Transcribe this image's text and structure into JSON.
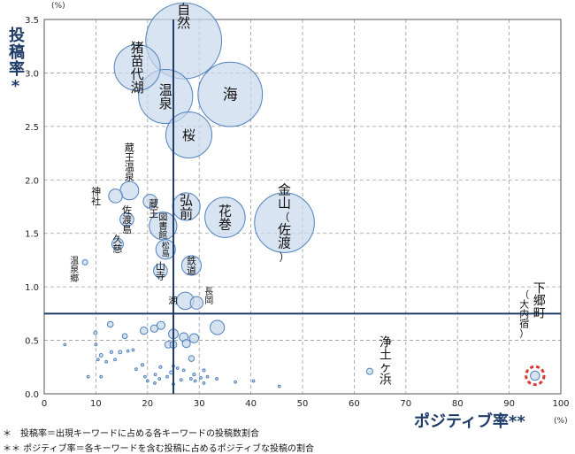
{
  "chart_data": {
    "type": "scatter",
    "title": "",
    "xlabel": "ポジティブ率**",
    "ylabel": "投稿率*",
    "x_unit": "(%)",
    "y_unit": "(%)",
    "xlim": [
      0,
      100
    ],
    "ylim": [
      0,
      3.5
    ],
    "xticks": [
      0,
      10,
      20,
      30,
      40,
      50,
      60,
      70,
      80,
      90,
      100
    ],
    "yticks": [
      0.0,
      0.5,
      1.0,
      1.5,
      2.0,
      2.5,
      3.0,
      3.5
    ],
    "ref_lines": {
      "x": 25,
      "y": 0.75
    },
    "grid": true,
    "notes": [
      "＊　投稿率＝出現キーワードに占める各キーワードの投稿数割合",
      "＊＊ ポジティブ率＝各キーワードを含む投稿に占めるポジティブな投稿の割合"
    ],
    "labeled_points": [
      {
        "label": "自然",
        "x": 27.0,
        "y": 3.3,
        "r": 3.3
      },
      {
        "label": "海",
        "x": 36.0,
        "y": 2.8,
        "r": 2.8
      },
      {
        "label": "猪苗代湖",
        "x": 18.0,
        "y": 3.05,
        "r": 2.0
      },
      {
        "label": "温泉",
        "x": 23.5,
        "y": 2.78,
        "r": 2.35
      },
      {
        "label": "桜",
        "x": 28.0,
        "y": 2.42,
        "r": 2.0
      },
      {
        "label": "金山（佐渡）",
        "x": 46.5,
        "y": 1.6,
        "r": 2.6
      },
      {
        "label": "花巻",
        "x": 35.0,
        "y": 1.65,
        "r": 1.75
      },
      {
        "label": "弘前",
        "x": 27.5,
        "y": 1.75,
        "r": 1.2
      },
      {
        "label": "図書館",
        "x": 23.0,
        "y": 1.57,
        "r": 1.2
      },
      {
        "label": "蔵王温泉",
        "x": 16.5,
        "y": 1.9,
        "r": 0.8
      },
      {
        "label": "蔵王",
        "x": 20.5,
        "y": 1.8,
        "r": 0.6
      },
      {
        "label": "神社",
        "x": 13.8,
        "y": 1.85,
        "r": 0.6
      },
      {
        "label": "佐渡島",
        "x": 16.0,
        "y": 1.63,
        "r": 0.6
      },
      {
        "label": "松島",
        "x": 23.5,
        "y": 1.35,
        "r": 0.85
      },
      {
        "label": "久慈",
        "x": 14.2,
        "y": 1.4,
        "r": 0.5
      },
      {
        "label": "鉄道",
        "x": 28.5,
        "y": 1.2,
        "r": 0.85
      },
      {
        "label": "山寺",
        "x": 22.5,
        "y": 1.15,
        "r": 0.6
      },
      {
        "label": "温泉郷",
        "x": 7.9,
        "y": 1.23,
        "r": 0.23
      },
      {
        "label": "湖",
        "x": 27.3,
        "y": 0.87,
        "r": 0.75
      },
      {
        "label": "長岡",
        "x": 29.5,
        "y": 0.85,
        "r": 0.55
      },
      {
        "label": "浄土ヶ浜",
        "x": 63.0,
        "y": 0.21,
        "r": 0.27
      },
      {
        "label": "下郷町（大内宿）",
        "x": 95.0,
        "y": 0.17,
        "r": 0.4
      }
    ],
    "small_points": [
      {
        "x": 4.0,
        "y": 0.46,
        "r": 0.06
      },
      {
        "x": 9.9,
        "y": 0.57,
        "r": 0.15
      },
      {
        "x": 10.0,
        "y": 0.46,
        "r": 0.1
      },
      {
        "x": 12.8,
        "y": 0.65,
        "r": 0.25
      },
      {
        "x": 15.6,
        "y": 0.54,
        "r": 0.22
      },
      {
        "x": 19.3,
        "y": 0.59,
        "r": 0.32
      },
      {
        "x": 21.3,
        "y": 0.61,
        "r": 0.32
      },
      {
        "x": 22.6,
        "y": 0.64,
        "r": 0.35
      },
      {
        "x": 25.0,
        "y": 0.56,
        "r": 0.42
      },
      {
        "x": 27.0,
        "y": 0.53,
        "r": 0.38
      },
      {
        "x": 29.0,
        "y": 0.52,
        "r": 0.4
      },
      {
        "x": 33.5,
        "y": 0.62,
        "r": 0.62
      },
      {
        "x": 24.0,
        "y": 0.46,
        "r": 0.3
      },
      {
        "x": 25.0,
        "y": 0.46,
        "r": 0.3
      },
      {
        "x": 27.5,
        "y": 0.47,
        "r": 0.35
      },
      {
        "x": 28.5,
        "y": 0.33,
        "r": 0.25
      },
      {
        "x": 11.0,
        "y": 0.36,
        "r": 0.15
      },
      {
        "x": 13.0,
        "y": 0.39,
        "r": 0.12
      },
      {
        "x": 13.7,
        "y": 0.32,
        "r": 0.1
      },
      {
        "x": 14.7,
        "y": 0.39,
        "r": 0.15
      },
      {
        "x": 16.2,
        "y": 0.4,
        "r": 0.1
      },
      {
        "x": 17.2,
        "y": 0.41,
        "r": 0.1
      },
      {
        "x": 10.4,
        "y": 0.32,
        "r": 0.1
      },
      {
        "x": 12.0,
        "y": 0.3,
        "r": 0.1
      },
      {
        "x": 19.0,
        "y": 0.27,
        "r": 0.12
      },
      {
        "x": 22.5,
        "y": 0.25,
        "r": 0.12
      },
      {
        "x": 8.5,
        "y": 0.16,
        "r": 0.06
      },
      {
        "x": 11.0,
        "y": 0.16,
        "r": 0.06
      },
      {
        "x": 17.8,
        "y": 0.23,
        "r": 0.06
      },
      {
        "x": 19.5,
        "y": 0.16,
        "r": 0.06
      },
      {
        "x": 21.5,
        "y": 0.18,
        "r": 0.06
      },
      {
        "x": 22.3,
        "y": 0.14,
        "r": 0.06
      },
      {
        "x": 23.8,
        "y": 0.16,
        "r": 0.06
      },
      {
        "x": 24.6,
        "y": 0.2,
        "r": 0.15
      },
      {
        "x": 26.5,
        "y": 0.13,
        "r": 0.08
      },
      {
        "x": 28.4,
        "y": 0.14,
        "r": 0.08
      },
      {
        "x": 29.0,
        "y": 0.18,
        "r": 0.12
      },
      {
        "x": 30.3,
        "y": 0.15,
        "r": 0.08
      },
      {
        "x": 31.6,
        "y": 0.16,
        "r": 0.1
      },
      {
        "x": 27.0,
        "y": 0.22,
        "r": 0.1
      },
      {
        "x": 30.9,
        "y": 0.22,
        "r": 0.12
      },
      {
        "x": 33.4,
        "y": 0.14,
        "r": 0.1
      },
      {
        "x": 37.0,
        "y": 0.11,
        "r": 0.1
      },
      {
        "x": 40.5,
        "y": 0.12,
        "r": 0.08
      },
      {
        "x": 45.5,
        "y": 0.07,
        "r": 0.06
      },
      {
        "x": 25.0,
        "y": 0.09,
        "r": 0.05
      },
      {
        "x": 29.2,
        "y": 0.12,
        "r": 0.05
      },
      {
        "x": 30.9,
        "y": 0.1,
        "r": 0.06
      },
      {
        "x": 20.0,
        "y": 0.12,
        "r": 0.06
      },
      {
        "x": 21.4,
        "y": 0.1,
        "r": 0.06
      },
      {
        "x": 25.0,
        "y": 0.26,
        "r": 0.08
      },
      {
        "x": 25.8,
        "y": 0.24,
        "r": 0.1
      }
    ],
    "highlight": {
      "label": "下郷町（大内宿）",
      "color": "#d93a33"
    }
  },
  "colors": {
    "bubble_fill": "#c9d8ec",
    "bubble_stroke": "#4f81bd",
    "ref_line": "#1f3c68",
    "grid": "#9a9a9a",
    "title_text": "#1f3c68"
  }
}
